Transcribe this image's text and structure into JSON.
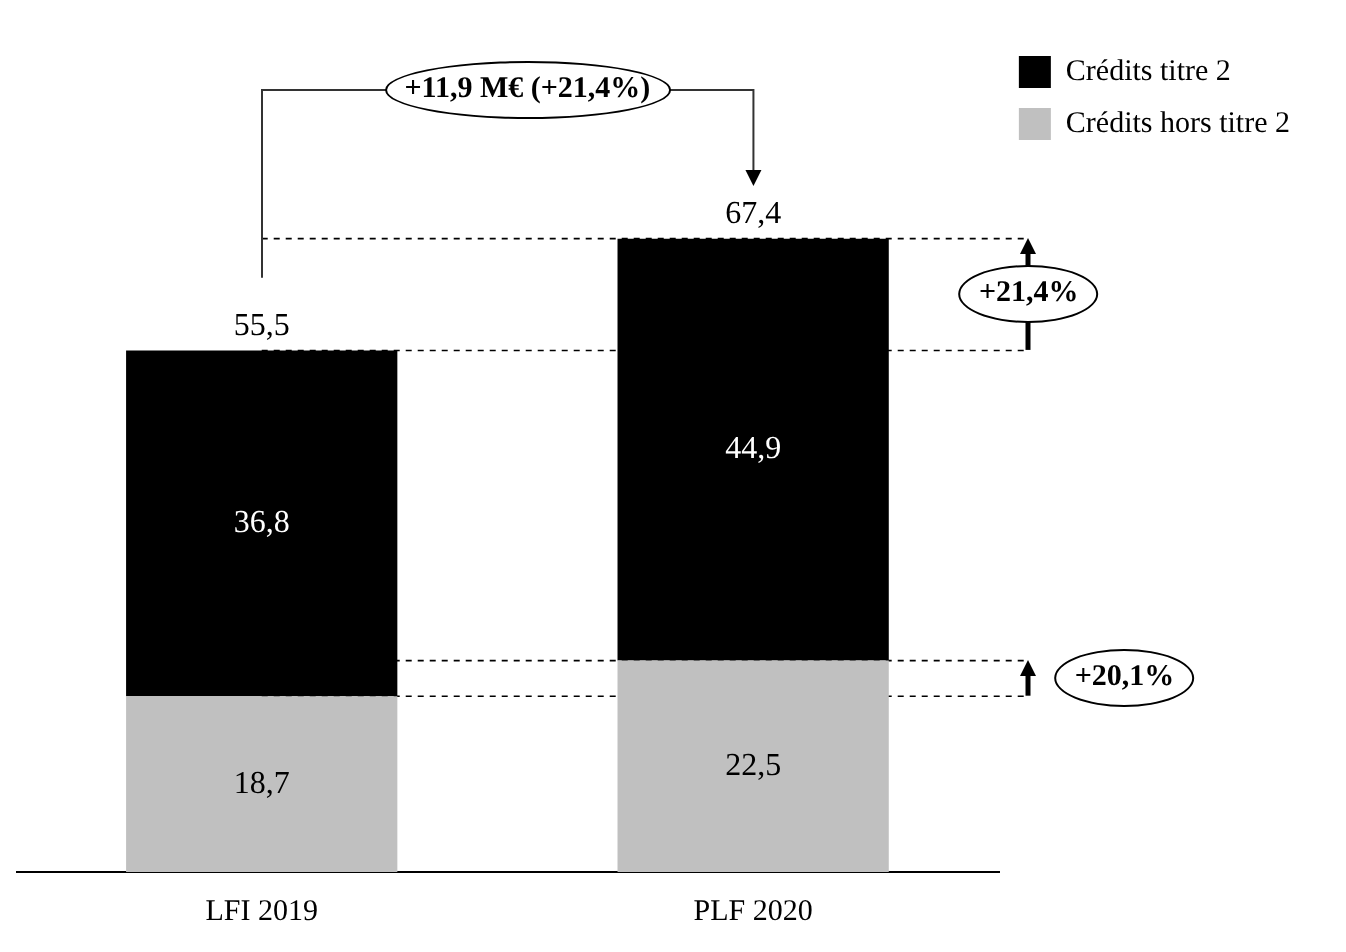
{
  "chart_data": {
    "type": "bar",
    "stacked": true,
    "categories": [
      "LFI 2019",
      "PLF 2020"
    ],
    "series": [
      {
        "name": "Crédits hors titre 2",
        "color": "#c0c0c0",
        "values": [
          18.7,
          22.5
        ],
        "value_labels": [
          "18,7",
          "22,5"
        ]
      },
      {
        "name": "Crédits titre 2",
        "color": "#000000",
        "values": [
          36.8,
          44.9
        ],
        "value_labels": [
          "36,8",
          "44,9"
        ]
      }
    ],
    "totals": [
      "55,5",
      "67,4"
    ],
    "annotations": [
      "+11,9 M€ (+21,4%)",
      "+21,4%",
      "+20,1%"
    ],
    "ref_lines": [
      {
        "axis": "y",
        "value": 67.4,
        "line_style": "dashed",
        "color": "#000000"
      },
      {
        "axis": "y",
        "value": 55.5,
        "line_style": "dashed",
        "color": "#000000"
      },
      {
        "axis": "y",
        "value": 22.5,
        "line_style": "dashed",
        "color": "#000000"
      },
      {
        "axis": "y",
        "value": 18.7,
        "line_style": "dashed",
        "color": "#000000"
      }
    ],
    "legend": "right",
    "grid": false,
    "tick_labels": "x"
  }
}
